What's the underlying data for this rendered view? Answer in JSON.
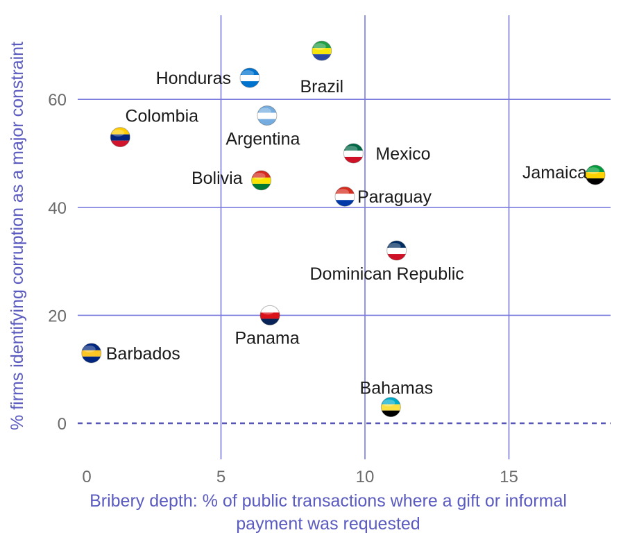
{
  "chart_data": {
    "type": "scatter",
    "title": "",
    "xlabel": [
      "Bribery depth: % of public transactions where a gift or informal",
      "payment was requested"
    ],
    "ylabel": "% firms identifying corruption as a major constraint",
    "xlim": [
      0,
      18.5
    ],
    "ylim": [
      -5,
      75
    ],
    "xticks": [
      0,
      5,
      10,
      15
    ],
    "yticks": [
      0,
      20,
      40,
      60
    ],
    "points": [
      {
        "label": "Brazil",
        "x": 8.5,
        "y": 69,
        "flag": "brazil-flag-icon",
        "colors": [
          "#229e45",
          "#f8e509",
          "#2b49a3"
        ]
      },
      {
        "label": "Honduras",
        "x": 6.0,
        "y": 64,
        "flag": "honduras-flag-icon",
        "colors": [
          "#0073cf",
          "#ffffff",
          "#0073cf"
        ]
      },
      {
        "label": "Argentina",
        "x": 6.6,
        "y": 57,
        "flag": "argentina-flag-icon",
        "colors": [
          "#74acdf",
          "#ffffff",
          "#74acdf"
        ]
      },
      {
        "label": "Colombia",
        "x": 1.5,
        "y": 53,
        "flag": "venezuela-flag-icon",
        "colors": [
          "#ffcc00",
          "#00247d",
          "#cf142b"
        ]
      },
      {
        "label": "Mexico",
        "x": 9.6,
        "y": 50,
        "flag": "mexico-flag-icon",
        "colors": [
          "#006847",
          "#ffffff",
          "#ce1126"
        ]
      },
      {
        "label": "Jamaica",
        "x": 18.0,
        "y": 46,
        "flag": "jamaica-flag-icon",
        "colors": [
          "#009b3a",
          "#fed100",
          "#000000"
        ]
      },
      {
        "label": "Bolivia",
        "x": 6.4,
        "y": 45,
        "flag": "bolivia-flag-icon",
        "colors": [
          "#d52b1e",
          "#f9e300",
          "#007934"
        ]
      },
      {
        "label": "Paraguay",
        "x": 9.3,
        "y": 42,
        "flag": "paraguay-flag-icon",
        "colors": [
          "#d52b1e",
          "#ffffff",
          "#0038a8"
        ]
      },
      {
        "label": "Dominican Republic",
        "x": 11.1,
        "y": 32,
        "flag": "dominican-republic-flag-icon",
        "colors": [
          "#002d62",
          "#ffffff",
          "#ce1126"
        ]
      },
      {
        "label": "Panama",
        "x": 6.7,
        "y": 20,
        "flag": "panama-flag-icon",
        "colors": [
          "#ffffff",
          "#da121a",
          "#072357"
        ]
      },
      {
        "label": "Barbados",
        "x": 0.5,
        "y": 13,
        "flag": "barbados-flag-icon",
        "colors": [
          "#00267f",
          "#ffc726",
          "#00267f"
        ]
      },
      {
        "label": "Bahamas",
        "x": 10.9,
        "y": 3,
        "flag": "bahamas-flag-icon",
        "colors": [
          "#00abc9",
          "#fae042",
          "#000000"
        ]
      }
    ]
  }
}
